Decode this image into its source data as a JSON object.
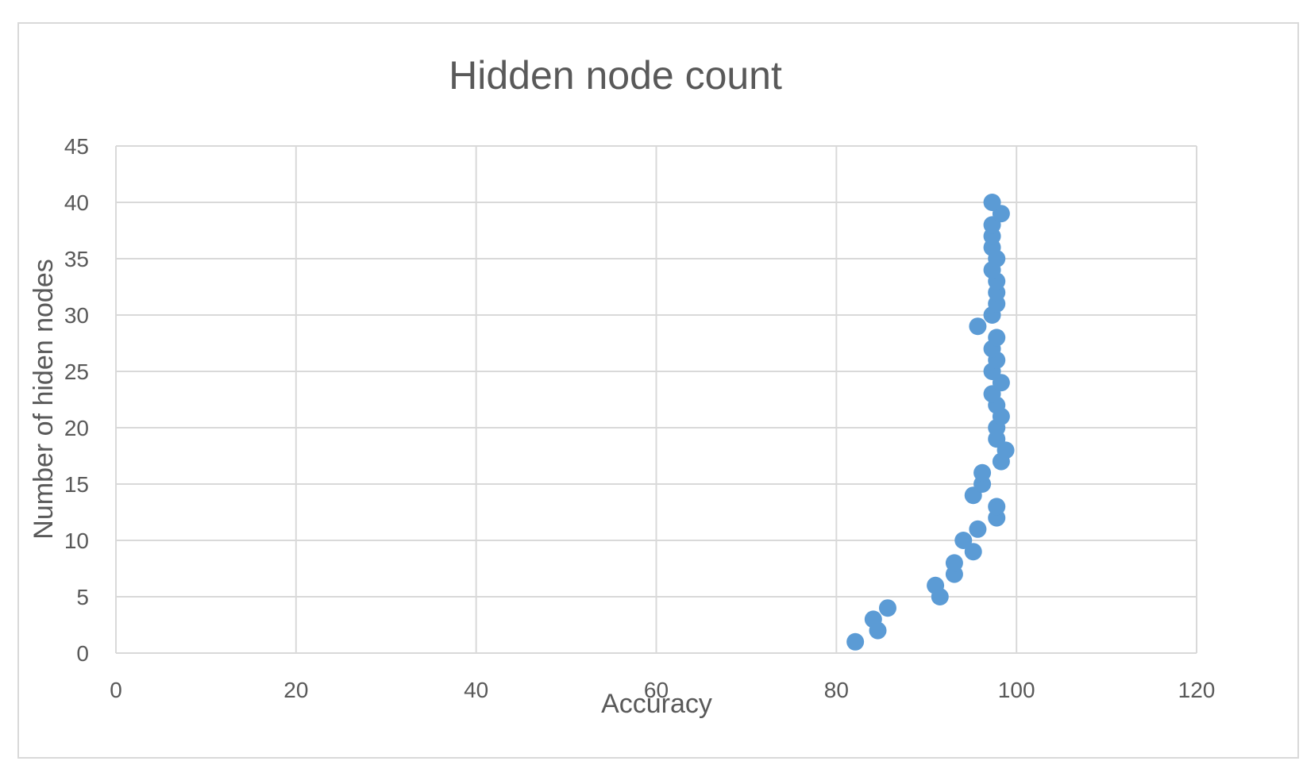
{
  "chart_data": {
    "type": "scatter",
    "title": "Hidden node count",
    "xlabel": "Accuracy",
    "ylabel": "Number of hiden nodes",
    "xlim": [
      0,
      120
    ],
    "ylim": [
      0,
      45
    ],
    "xticks": [
      0,
      20,
      40,
      60,
      80,
      100,
      120
    ],
    "yticks": [
      0,
      5,
      10,
      15,
      20,
      25,
      30,
      35,
      40,
      45
    ],
    "grid": true,
    "legend": "none",
    "marker_color": "#5b9bd5",
    "grid_color": "#d9d9d9",
    "text_color": "#595959",
    "points": [
      {
        "x": 82.1,
        "y": 1
      },
      {
        "x": 84.6,
        "y": 2
      },
      {
        "x": 84.1,
        "y": 3
      },
      {
        "x": 85.7,
        "y": 4
      },
      {
        "x": 91.5,
        "y": 5
      },
      {
        "x": 91.0,
        "y": 6
      },
      {
        "x": 93.1,
        "y": 7
      },
      {
        "x": 93.1,
        "y": 8
      },
      {
        "x": 95.2,
        "y": 9
      },
      {
        "x": 94.1,
        "y": 10
      },
      {
        "x": 95.7,
        "y": 11
      },
      {
        "x": 97.8,
        "y": 12
      },
      {
        "x": 97.8,
        "y": 13
      },
      {
        "x": 95.2,
        "y": 14
      },
      {
        "x": 96.2,
        "y": 15
      },
      {
        "x": 96.2,
        "y": 16
      },
      {
        "x": 98.3,
        "y": 17
      },
      {
        "x": 98.8,
        "y": 18
      },
      {
        "x": 97.8,
        "y": 19
      },
      {
        "x": 97.8,
        "y": 20
      },
      {
        "x": 98.3,
        "y": 21
      },
      {
        "x": 97.8,
        "y": 22
      },
      {
        "x": 97.3,
        "y": 23
      },
      {
        "x": 98.3,
        "y": 24
      },
      {
        "x": 97.3,
        "y": 25
      },
      {
        "x": 97.8,
        "y": 26
      },
      {
        "x": 97.3,
        "y": 27
      },
      {
        "x": 97.8,
        "y": 28
      },
      {
        "x": 95.7,
        "y": 29
      },
      {
        "x": 97.3,
        "y": 30
      },
      {
        "x": 97.8,
        "y": 31
      },
      {
        "x": 97.8,
        "y": 32
      },
      {
        "x": 97.8,
        "y": 33
      },
      {
        "x": 97.3,
        "y": 34
      },
      {
        "x": 97.8,
        "y": 35
      },
      {
        "x": 97.3,
        "y": 36
      },
      {
        "x": 97.3,
        "y": 37
      },
      {
        "x": 97.3,
        "y": 38
      },
      {
        "x": 98.3,
        "y": 39
      },
      {
        "x": 97.3,
        "y": 40
      }
    ]
  }
}
